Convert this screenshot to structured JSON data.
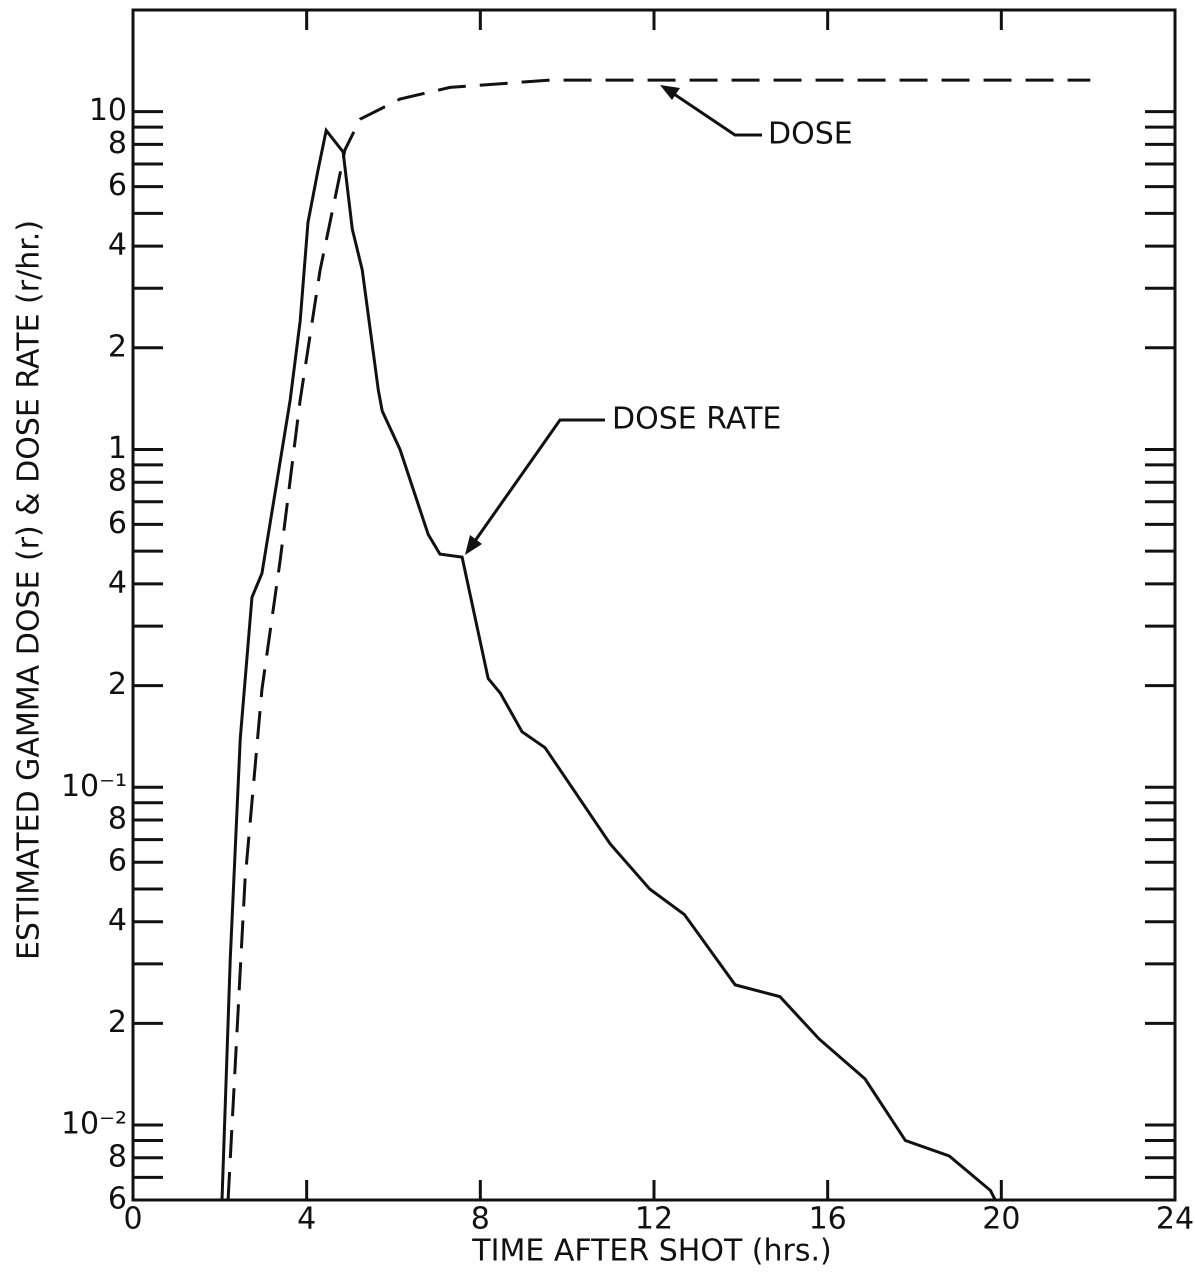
{
  "chart_data": {
    "type": "line",
    "xlabel": "TIME AFTER SHOT (hrs.)",
    "ylabel": "ESTIMATED GAMMA DOSE (r) & DOSE RATE (r/hr.)",
    "xlim": [
      0,
      24
    ],
    "xticks": [
      0,
      4,
      8,
      12,
      16,
      20,
      24
    ],
    "ylim": [
      0.006,
      20
    ],
    "log_y": true,
    "yticks": [
      {
        "value": 0.006,
        "label": "6"
      },
      {
        "value": 0.008,
        "label": "8"
      },
      {
        "value": 0.01,
        "label": "10⁻²"
      },
      {
        "value": 0.02,
        "label": "2"
      },
      {
        "value": 0.04,
        "label": "4"
      },
      {
        "value": 0.06,
        "label": "6"
      },
      {
        "value": 0.08,
        "label": "8"
      },
      {
        "value": 0.1,
        "label": "10⁻¹"
      },
      {
        "value": 0.2,
        "label": "2"
      },
      {
        "value": 0.4,
        "label": "4"
      },
      {
        "value": 0.6,
        "label": "6"
      },
      {
        "value": 0.8,
        "label": "8"
      },
      1,
      2,
      4,
      6,
      8,
      10
    ],
    "yticks_minor": [
      0.007,
      0.009,
      0.03,
      0.05,
      0.07,
      0.09,
      0.3,
      0.5,
      0.7,
      0.9,
      3,
      5,
      7,
      9
    ],
    "grid": false,
    "series": [
      {
        "name": "DOSE RATE",
        "color": "#111111",
        "dashed": false,
        "x": [
          2.05,
          2.24,
          2.47,
          2.74,
          2.97,
          3.62,
          3.85,
          4.03,
          4.26,
          4.45,
          4.84,
          5.05,
          5.28,
          5.65,
          5.74,
          6.15,
          6.8,
          7.07,
          7.58,
          8.18,
          8.46,
          8.96,
          9.49,
          10.99,
          11.9,
          12.7,
          13.87,
          14.9,
          15.8,
          16.86,
          17.79,
          18.8,
          19.75,
          19.86
        ],
        "values": [
          0.006,
          0.031,
          0.139,
          0.365,
          0.43,
          1.4,
          2.4,
          4.7,
          6.7,
          8.8,
          7.6,
          4.5,
          3.4,
          1.5,
          1.3,
          1.0,
          0.56,
          0.49,
          0.48,
          0.21,
          0.19,
          0.146,
          0.131,
          0.068,
          0.05,
          0.042,
          0.026,
          0.024,
          0.018,
          0.0137,
          0.009,
          0.0081,
          0.0064,
          0.006
        ]
      },
      {
        "name": "DOSE",
        "color": "#111111",
        "dashed": true,
        "x": [
          2.19,
          2.58,
          2.97,
          3.39,
          3.85,
          4.31,
          4.72,
          4.88,
          5.23,
          6.15,
          7.3,
          9.6,
          11.9,
          22.05
        ],
        "values": [
          0.006,
          0.053,
          0.195,
          0.47,
          1.4,
          3.4,
          6.1,
          7.7,
          9.5,
          10.9,
          11.8,
          12.4,
          12.4,
          12.4
        ]
      }
    ]
  }
}
